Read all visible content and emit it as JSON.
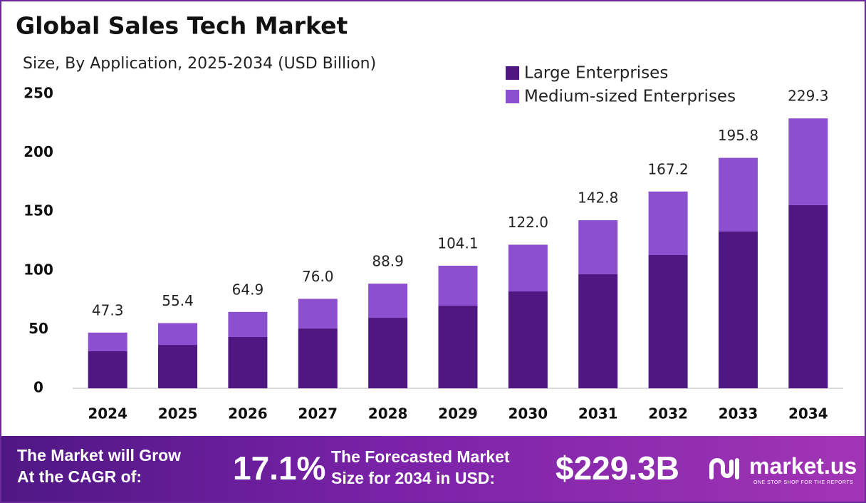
{
  "chart_data": {
    "type": "stacked_bar",
    "title": "Global Sales Tech Market",
    "subtitle": "Size, By Application, 2025-2034 (USD Billion)",
    "categories": [
      "2024",
      "2025",
      "2026",
      "2027",
      "2028",
      "2029",
      "2030",
      "2031",
      "2032",
      "2033",
      "2034"
    ],
    "series": [
      {
        "name": "Large Enterprises",
        "color": "#4e1782",
        "values": [
          31.5,
          36.9,
          43.6,
          50.8,
          59.9,
          70.2,
          82.3,
          96.9,
          113.2,
          133.2,
          155.6
        ]
      },
      {
        "name": "Medium-sized Enterprises",
        "color": "#8b4fcf",
        "values": [
          15.8,
          18.5,
          21.3,
          25.2,
          29.0,
          33.9,
          39.7,
          45.9,
          54.0,
          62.6,
          73.7
        ]
      }
    ],
    "totals": [
      47.3,
      55.4,
      64.9,
      76,
      88.9,
      104.1,
      122,
      142.8,
      167.2,
      195.8,
      229.3
    ],
    "total_labels": [
      "47.3",
      "55.4",
      "64.9",
      "76.0",
      "88.9",
      "104.1",
      "122.0",
      "142.8",
      "167.2",
      "195.8",
      "229.3"
    ],
    "ylim": [
      0,
      250
    ],
    "yticks": [
      0,
      50,
      100,
      150,
      200,
      250
    ],
    "grid": false
  },
  "footer": {
    "cagr_text": [
      "The Market will Grow",
      "At the CAGR of:"
    ],
    "cagr": "17.1%",
    "forecast_text": [
      "The Forecasted Market",
      "Size for 2034 in USD:"
    ],
    "forecast": "$229.3B",
    "brand": "market.us",
    "tagline": "ONE STOP SHOP FOR THE REPORTS"
  }
}
